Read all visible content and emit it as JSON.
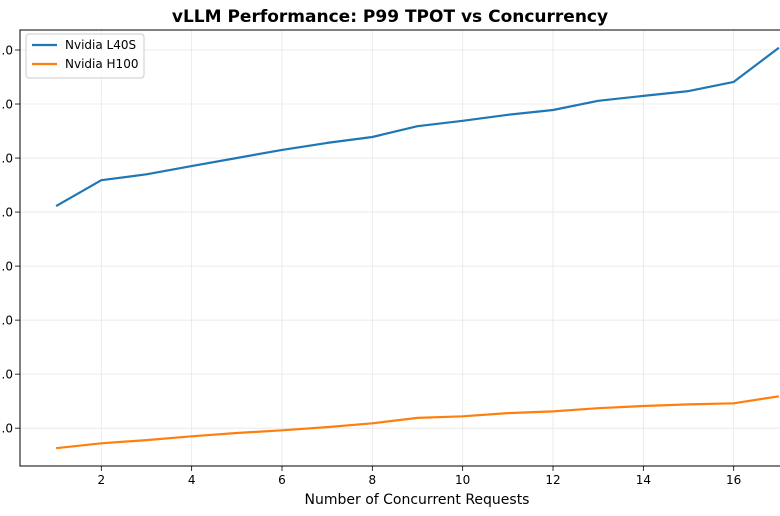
{
  "chart_data": {
    "type": "line",
    "title": "vLLM Performance: P99 TPOT vs Concurrency",
    "xlabel": "Number of Concurrent Requests",
    "ylabel": "",
    "x": [
      1,
      2,
      3,
      4,
      5,
      6,
      7,
      8,
      9,
      10,
      11,
      12,
      13,
      14,
      15,
      16,
      17
    ],
    "xlim": [
      0.2,
      17.8
    ],
    "xticks": [
      2,
      4,
      6,
      8,
      10,
      12,
      14,
      16
    ],
    "ylim": [
      -0.7,
      7.37
    ],
    "yticks": [
      0,
      1,
      2,
      3,
      4,
      5,
      6,
      7
    ],
    "ytick_labels": [
      ".0",
      ".0",
      ".0",
      ".0",
      ".0",
      ".0",
      ".0",
      ".0"
    ],
    "grid": true,
    "legend_position": "top-left",
    "series": [
      {
        "name": "Nvidia L40S",
        "color": "#1f77b4",
        "values": [
          4.11,
          4.59,
          4.7,
          4.85,
          5.0,
          5.15,
          5.28,
          5.39,
          5.59,
          5.69,
          5.8,
          5.89,
          6.06,
          6.15,
          6.24,
          6.41,
          7.04
        ]
      },
      {
        "name": "Nvidia H100",
        "color": "#ff7f0e",
        "values": [
          -0.37,
          -0.28,
          -0.22,
          -0.15,
          -0.09,
          -0.04,
          0.02,
          0.09,
          0.19,
          0.22,
          0.28,
          0.31,
          0.37,
          0.41,
          0.44,
          0.46,
          0.59
        ]
      }
    ]
  }
}
